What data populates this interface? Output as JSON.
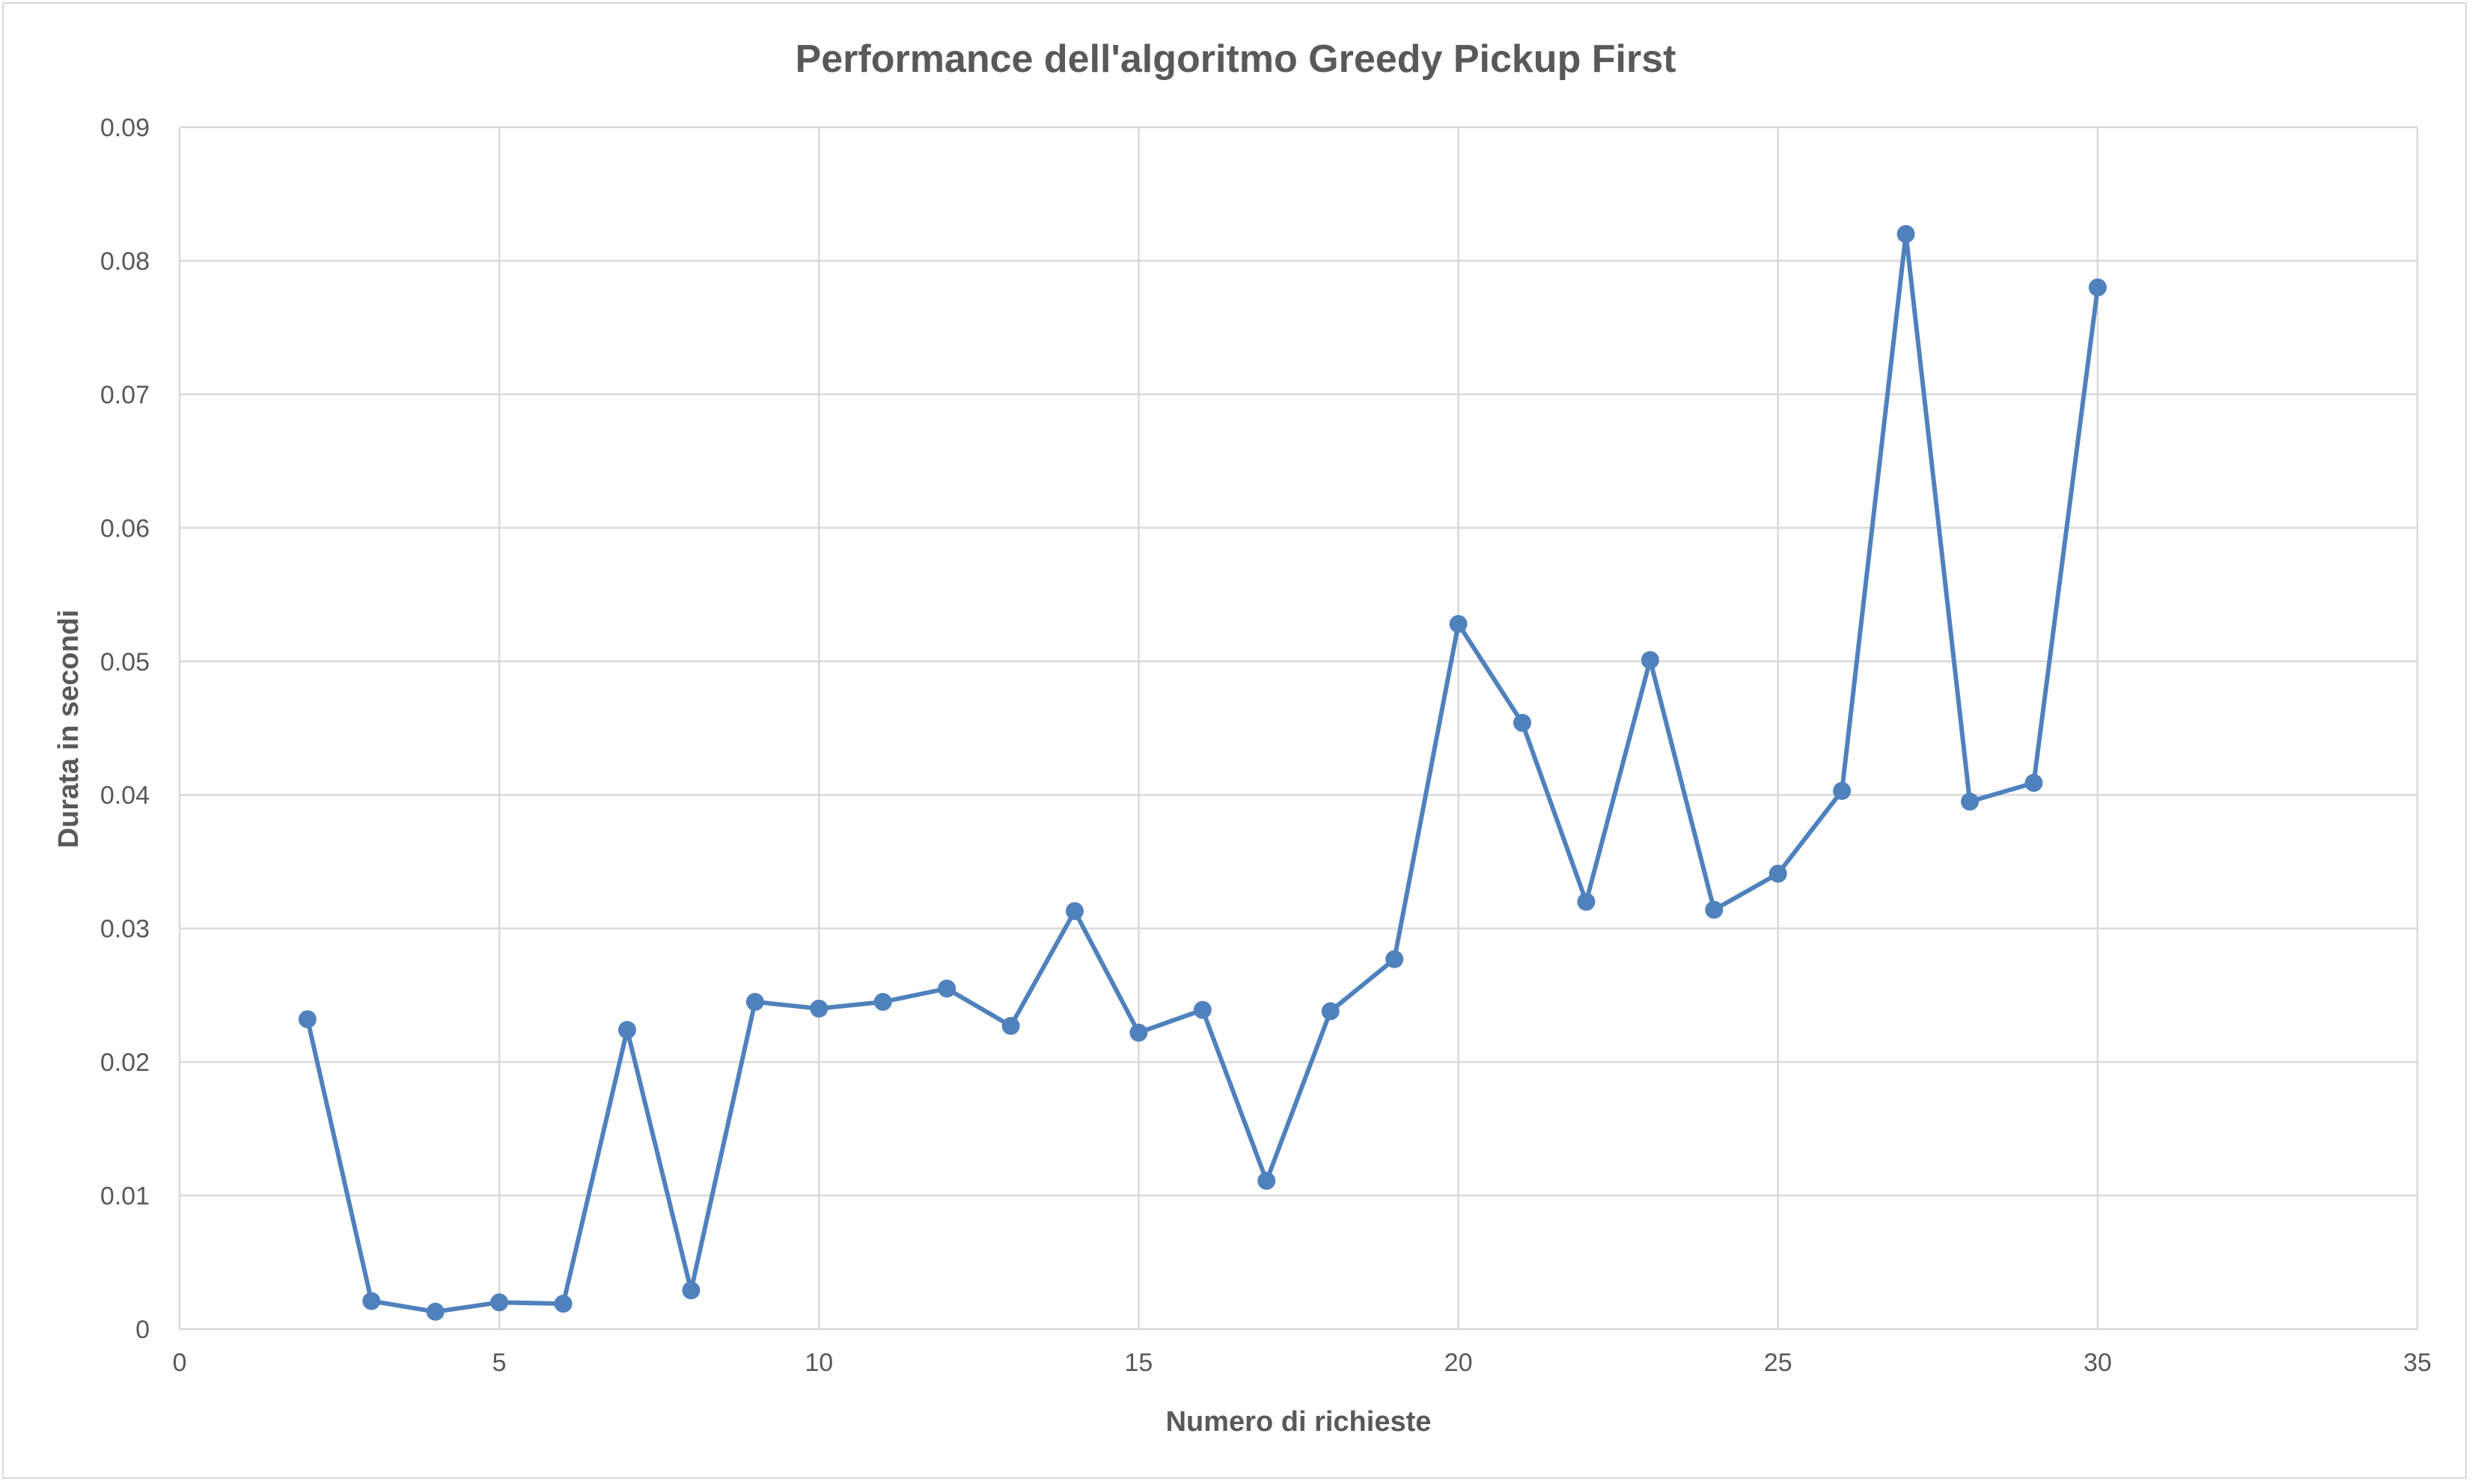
{
  "colors": {
    "series": "#4f81bd",
    "grid": "#d9d9d9",
    "text": "#595959"
  },
  "chart_data": {
    "type": "scatter",
    "title": "Performance dell'algoritmo Greedy Pickup First",
    "xlabel": "Numero di richieste",
    "ylabel": "Durata in secondi",
    "xlim": [
      0,
      35
    ],
    "ylim": [
      0,
      0.09
    ],
    "xticks": [
      0,
      5,
      10,
      15,
      20,
      25,
      30,
      35
    ],
    "yticks": [
      0,
      0.01,
      0.02,
      0.03,
      0.04,
      0.05,
      0.06,
      0.07,
      0.08,
      0.09
    ],
    "xtick_labels": [
      "0",
      "5",
      "10",
      "15",
      "20",
      "25",
      "30",
      "35"
    ],
    "ytick_labels": [
      "0",
      "0.01",
      "0.02",
      "0.03",
      "0.04",
      "0.05",
      "0.06",
      "0.07",
      "0.08",
      "0.09"
    ],
    "grid": true,
    "legend": "none",
    "markers": "circle",
    "connected": true,
    "series": [
      {
        "x": [
          2,
          3,
          4,
          5,
          6,
          7,
          8,
          9,
          10,
          11,
          12,
          13,
          14,
          15,
          16,
          17,
          18,
          19,
          20,
          21,
          22,
          23,
          24,
          25,
          26,
          27,
          28,
          29,
          30
        ],
        "y": [
          0.0232,
          0.0021,
          0.0013,
          0.002,
          0.0019,
          0.0224,
          0.0029,
          0.0245,
          0.024,
          0.0245,
          0.0255,
          0.0227,
          0.0313,
          0.0222,
          0.0239,
          0.0111,
          0.0238,
          0.0277,
          0.0528,
          0.0454,
          0.032,
          0.0501,
          0.0314,
          0.0341,
          0.0403,
          0.082,
          0.0395,
          0.0409,
          0.078
        ]
      }
    ]
  }
}
